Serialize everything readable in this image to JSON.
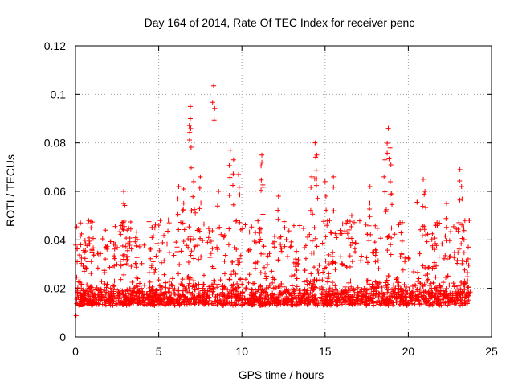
{
  "chart_data": {
    "type": "scatter",
    "title": "Day 164 of 2014, Rate Of TEC Index for receiver penc",
    "xlabel": "GPS time / hours",
    "ylabel": "ROTI / TECUs",
    "xlim": [
      0,
      25
    ],
    "ylim": [
      0,
      0.12
    ],
    "xticks": [
      0,
      5,
      10,
      15,
      20,
      25
    ],
    "xtick_labels": [
      "0",
      "5",
      "10",
      "15",
      "20",
      "25"
    ],
    "yticks": [
      0,
      0.02,
      0.04,
      0.06,
      0.08,
      0.1,
      0.12
    ],
    "ytick_labels": [
      "0",
      "0.02",
      "0.04",
      "0.06",
      "0.08",
      "0.1",
      "0.12"
    ],
    "grid": true,
    "marker": "+",
    "color": "#ff0000",
    "series": [
      {
        "name": "ROTI",
        "x_range_hours": [
          0,
          23.75
        ],
        "typical_range": [
          0.005,
          0.03
        ],
        "notable_points": [
          {
            "x": 0.1,
            "y": 0.031
          },
          {
            "x": 0.3,
            "y": 0.047
          },
          {
            "x": 0.8,
            "y": 0.048
          },
          {
            "x": 1.8,
            "y": 0.044
          },
          {
            "x": 2.9,
            "y": 0.06
          },
          {
            "x": 2.9,
            "y": 0.055
          },
          {
            "x": 3.1,
            "y": 0.044
          },
          {
            "x": 4.6,
            "y": 0.041
          },
          {
            "x": 6.2,
            "y": 0.062
          },
          {
            "x": 6.5,
            "y": 0.061
          },
          {
            "x": 6.9,
            "y": 0.095
          },
          {
            "x": 6.9,
            "y": 0.09
          },
          {
            "x": 7.1,
            "y": 0.064
          },
          {
            "x": 7.5,
            "y": 0.066
          },
          {
            "x": 8.3,
            "y": 0.1035
          },
          {
            "x": 8.6,
            "y": 0.06
          },
          {
            "x": 9.3,
            "y": 0.077
          },
          {
            "x": 9.5,
            "y": 0.073
          },
          {
            "x": 9.8,
            "y": 0.067
          },
          {
            "x": 11.2,
            "y": 0.075
          },
          {
            "x": 11.2,
            "y": 0.072
          },
          {
            "x": 12.2,
            "y": 0.058
          },
          {
            "x": 14.2,
            "y": 0.066
          },
          {
            "x": 14.4,
            "y": 0.08
          },
          {
            "x": 14.5,
            "y": 0.075
          },
          {
            "x": 15.0,
            "y": 0.064
          },
          {
            "x": 15.5,
            "y": 0.066
          },
          {
            "x": 16.6,
            "y": 0.05
          },
          {
            "x": 17.7,
            "y": 0.062
          },
          {
            "x": 18.6,
            "y": 0.073
          },
          {
            "x": 18.8,
            "y": 0.086
          },
          {
            "x": 18.9,
            "y": 0.078
          },
          {
            "x": 19.0,
            "y": 0.059
          },
          {
            "x": 20.9,
            "y": 0.065
          },
          {
            "x": 21.0,
            "y": 0.06
          },
          {
            "x": 22.3,
            "y": 0.055
          },
          {
            "x": 23.1,
            "y": 0.069
          },
          {
            "x": 23.2,
            "y": 0.062
          },
          {
            "x": 23.4,
            "y": 0.048
          },
          {
            "x": 23.6,
            "y": 0.037
          }
        ]
      }
    ]
  }
}
